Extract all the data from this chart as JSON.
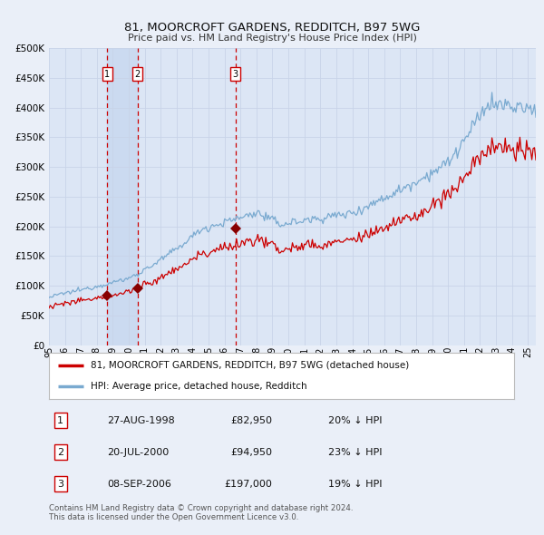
{
  "title": "81, MOORCROFT GARDENS, REDDITCH, B97 5WG",
  "subtitle": "Price paid vs. HM Land Registry's House Price Index (HPI)",
  "background_color": "#eaeff8",
  "plot_bg_color": "#dce6f5",
  "grid_color": "#c8d4e8",
  "hpi_line_color": "#7aaad0",
  "price_line_color": "#cc0000",
  "marker_color": "#880000",
  "vline_color": "#cc0000",
  "shade_color": "#c8d8f0",
  "purchases": [
    {
      "date_num": 1998.65,
      "price": 82950,
      "label": "1"
    },
    {
      "date_num": 2000.55,
      "price": 94950,
      "label": "2"
    },
    {
      "date_num": 2006.68,
      "price": 197000,
      "label": "3"
    }
  ],
  "legend_entries": [
    "81, MOORCROFT GARDENS, REDDITCH, B97 5WG (detached house)",
    "HPI: Average price, detached house, Redditch"
  ],
  "table_data": [
    [
      "1",
      "27-AUG-1998",
      "£82,950",
      "20% ↓ HPI"
    ],
    [
      "2",
      "20-JUL-2000",
      "£94,950",
      "23% ↓ HPI"
    ],
    [
      "3",
      "08-SEP-2006",
      "£197,000",
      "19% ↓ HPI"
    ]
  ],
  "footer": "Contains HM Land Registry data © Crown copyright and database right 2024.\nThis data is licensed under the Open Government Licence v3.0.",
  "ylim": [
    0,
    500000
  ],
  "yticks": [
    0,
    50000,
    100000,
    150000,
    200000,
    250000,
    300000,
    350000,
    400000,
    450000,
    500000
  ],
  "xlim_start": 1995.0,
  "xlim_end": 2025.5,
  "xticks": [
    1995,
    1996,
    1997,
    1998,
    1999,
    2000,
    2001,
    2002,
    2003,
    2004,
    2005,
    2006,
    2007,
    2008,
    2009,
    2010,
    2011,
    2012,
    2013,
    2014,
    2015,
    2016,
    2017,
    2018,
    2019,
    2020,
    2021,
    2022,
    2023,
    2024,
    2025
  ]
}
